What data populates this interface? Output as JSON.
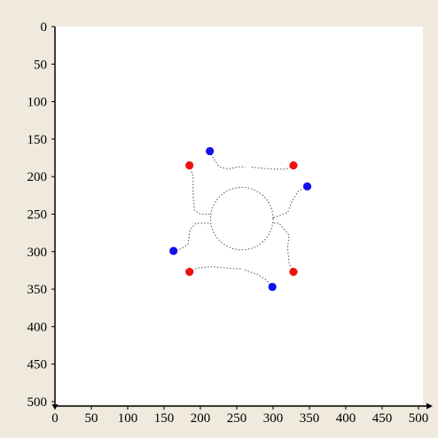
{
  "chart_data": {
    "type": "scatter",
    "title": "",
    "xlabel": "",
    "ylabel": "",
    "xlim": [
      0,
      500
    ],
    "ylim": [
      0,
      500
    ],
    "y_inverted": true,
    "grid": false,
    "legend": "none",
    "x_ticks": [
      0,
      50,
      100,
      150,
      200,
      250,
      300,
      350,
      400,
      450,
      500
    ],
    "y_ticks": [
      0,
      50,
      100,
      150,
      200,
      250,
      300,
      350,
      400,
      450,
      500
    ],
    "series": [
      {
        "color": "#ee1111",
        "points": [
          {
            "x": 185,
            "y": 185
          },
          {
            "x": 328,
            "y": 185
          },
          {
            "x": 185,
            "y": 327
          },
          {
            "x": 328,
            "y": 327
          }
        ]
      },
      {
        "color": "#1111ee",
        "points": [
          {
            "x": 213,
            "y": 166
          },
          {
            "x": 347,
            "y": 213
          },
          {
            "x": 163,
            "y": 299
          },
          {
            "x": 299,
            "y": 347
          }
        ]
      }
    ],
    "paths": {
      "style": "dotted",
      "color": "#555555",
      "circle": {
        "cx": 257,
        "cy": 256,
        "r": 43
      },
      "segments": [
        [
          [
            213,
            166
          ],
          [
            218,
            176
          ],
          [
            226,
            187
          ],
          [
            238,
            190
          ],
          [
            252,
            187
          ],
          [
            262,
            187
          ]
        ],
        [
          [
            185,
            185
          ],
          [
            190,
            200
          ],
          [
            190,
            225
          ],
          [
            192,
            245
          ],
          [
            200,
            250
          ],
          [
            214,
            250
          ]
        ],
        [
          [
            328,
            185
          ],
          [
            318,
            190
          ],
          [
            300,
            190
          ],
          [
            286,
            189
          ],
          [
            268,
            187
          ]
        ],
        [
          [
            347,
            213
          ],
          [
            334,
            220
          ],
          [
            326,
            233
          ],
          [
            320,
            248
          ],
          [
            300,
            255
          ]
        ],
        [
          [
            163,
            299
          ],
          [
            174,
            296
          ],
          [
            183,
            290
          ],
          [
            186,
            270
          ],
          [
            194,
            262
          ],
          [
            214,
            262
          ]
        ],
        [
          [
            185,
            327
          ],
          [
            195,
            322
          ],
          [
            215,
            320
          ],
          [
            238,
            322
          ],
          [
            256,
            323
          ]
        ],
        [
          [
            328,
            327
          ],
          [
            322,
            315
          ],
          [
            320,
            295
          ],
          [
            322,
            278
          ],
          [
            308,
            262
          ],
          [
            300,
            262
          ]
        ],
        [
          [
            299,
            347
          ],
          [
            291,
            338
          ],
          [
            280,
            331
          ],
          [
            268,
            327
          ],
          [
            260,
            324
          ]
        ]
      ]
    }
  }
}
